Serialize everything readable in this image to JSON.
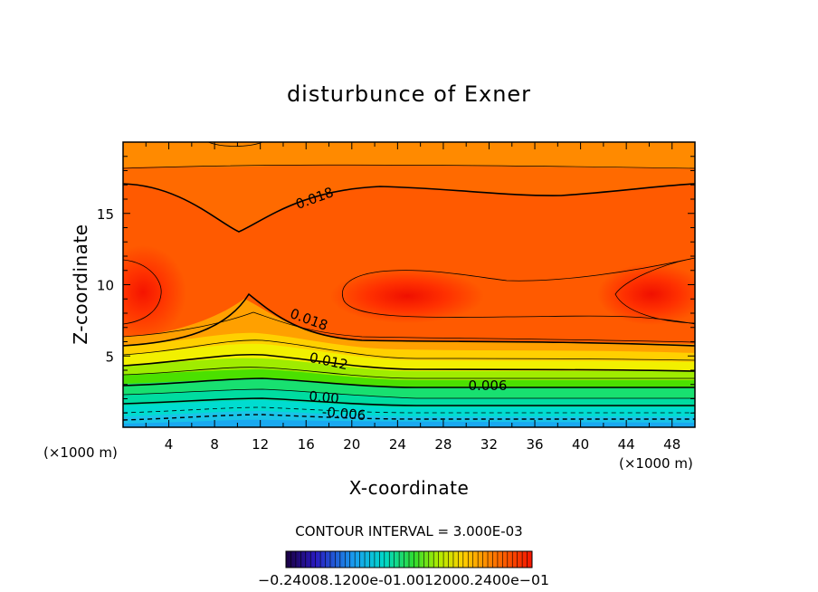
{
  "chart_data": {
    "type": "contour",
    "title": "disturbunce of Exner",
    "xlabel": "X-coordinate",
    "ylabel": "Z-coordinate",
    "x_unit": "(×1000 m)",
    "z_unit": "(×1000 m)",
    "xlim": [
      0,
      50
    ],
    "ylim": [
      0,
      20
    ],
    "x_ticks": [
      4,
      8,
      12,
      16,
      20,
      24,
      28,
      32,
      36,
      40,
      44,
      48
    ],
    "y_ticks": [
      5,
      10,
      15
    ],
    "contour_interval_text": "CONTOUR INTERVAL = 3.000E-03",
    "contour_labels": [
      "0.018",
      "0.018",
      "0.012",
      "0.006",
      "0.00",
      "-0.006"
    ],
    "colorbar_labels_text": "−0.24008.1200e-01.0012000.2400e−01",
    "fill_colors_low_to_high": [
      "#1a0040",
      "#1a2bd6",
      "#19a9f0",
      "#00dcd0",
      "#18e070",
      "#4be000",
      "#a0ec00",
      "#f2f000",
      "#ffd000",
      "#ffa800",
      "#ff8a00",
      "#ff6a00",
      "#ff4400",
      "#f51400"
    ]
  }
}
